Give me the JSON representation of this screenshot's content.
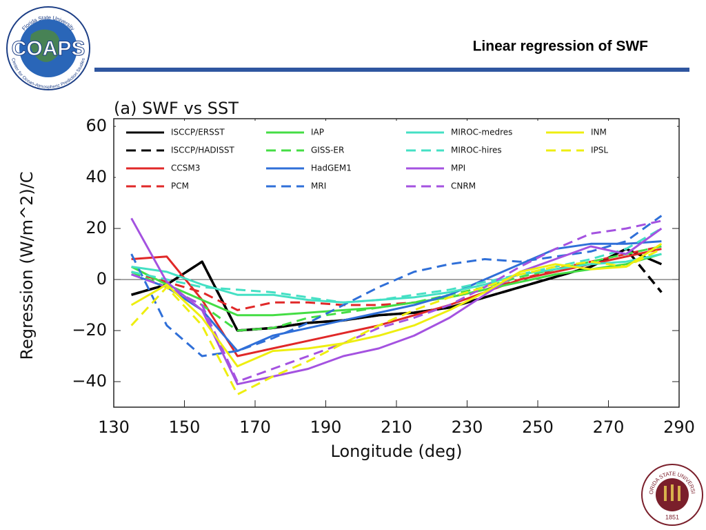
{
  "header": {
    "title": "Linear regression of SWF"
  },
  "logo": {
    "name": "COAPS",
    "top": "Florida State University",
    "bottom": "Center for Ocean-Atmospheric Prediction Studies"
  },
  "seal": {
    "name": "FLORIDA STATE UNIVERSITY",
    "year": "1851"
  },
  "chart_data": {
    "type": "line",
    "title": "(a) SWF vs SST",
    "x_label": "Longitude (deg)",
    "y_label": "Regression (W/m^2)/C",
    "x": [
      135,
      145,
      155,
      165,
      175,
      185,
      195,
      205,
      215,
      225,
      235,
      245,
      255,
      265,
      275,
      285
    ],
    "xlim": [
      130,
      290
    ],
    "xticks": [
      130,
      150,
      170,
      190,
      210,
      230,
      250,
      270,
      290
    ],
    "ylim": [
      -50,
      63
    ],
    "yticks": [
      {
        "value": -40,
        "label": "−40"
      },
      {
        "value": -20,
        "label": "−20"
      },
      0,
      20,
      40,
      60
    ],
    "zero_line": true,
    "legend": "top",
    "series": [
      {
        "name": "ISCCP/ERSST",
        "color": "#000000",
        "dashed": false,
        "values": [
          -6,
          -2,
          7,
          -20,
          -19,
          -17,
          -16,
          -14,
          -13,
          -11,
          -7,
          -3,
          1,
          5,
          12,
          6
        ]
      },
      {
        "name": "ISCCP/HADISST",
        "color": "#000000",
        "dashed": true,
        "values": [
          -6,
          -2,
          7,
          -20,
          -19,
          -17,
          -16,
          -14,
          -13,
          -11,
          -7,
          -3,
          1,
          5,
          12,
          -5
        ]
      },
      {
        "name": "CCSM3",
        "color": "#e02828",
        "dashed": false,
        "values": [
          8,
          9,
          -8,
          -30,
          -27,
          -24,
          -21,
          -18,
          -14,
          -10,
          -5,
          0,
          3,
          6,
          9,
          12
        ]
      },
      {
        "name": "PCM",
        "color": "#e02828",
        "dashed": true,
        "values": [
          3,
          -1,
          -5,
          -12,
          -9,
          -9,
          -10,
          -10,
          -9,
          -7,
          -4,
          0,
          4,
          7,
          10,
          13
        ]
      },
      {
        "name": "IAP",
        "color": "#44dd44",
        "dashed": false,
        "values": [
          5,
          -2,
          -8,
          -14,
          -14,
          -13,
          -12,
          -11,
          -9,
          -7,
          -4,
          -1,
          2,
          4,
          6,
          10
        ]
      },
      {
        "name": "GISS-ER",
        "color": "#44dd44",
        "dashed": true,
        "values": [
          3,
          -3,
          -10,
          -20,
          -19,
          -15,
          -13,
          -11,
          -9,
          -6,
          -3,
          1,
          4,
          7,
          10,
          13
        ]
      },
      {
        "name": "HadGEM1",
        "color": "#2f6fd8",
        "dashed": false,
        "values": [
          2,
          -3,
          -12,
          -28,
          -22,
          -19,
          -16,
          -13,
          -10,
          -6,
          0,
          6,
          12,
          14,
          14,
          15
        ]
      },
      {
        "name": "MRI",
        "color": "#2f6fd8",
        "dashed": true,
        "values": [
          10,
          -18,
          -30,
          -28,
          -23,
          -17,
          -10,
          -3,
          3,
          6,
          8,
          7,
          9,
          11,
          15,
          25
        ]
      },
      {
        "name": "MIROC-medres",
        "color": "#44e0c4",
        "dashed": false,
        "values": [
          5,
          3,
          -2,
          -6,
          -6,
          -8,
          -9,
          -8,
          -7,
          -5,
          -2,
          2,
          4,
          6,
          7,
          10
        ]
      },
      {
        "name": "MIROC-hires",
        "color": "#44e0c4",
        "dashed": true,
        "values": [
          3,
          0,
          -3,
          -4,
          -5,
          -7,
          -9,
          -8,
          -6,
          -4,
          -1,
          2,
          5,
          8,
          12,
          20
        ]
      },
      {
        "name": "MPI",
        "color": "#a452e0",
        "dashed": false,
        "values": [
          24,
          -1,
          -12,
          -41,
          -38,
          -35,
          -30,
          -27,
          -22,
          -15,
          -6,
          3,
          8,
          13,
          10,
          20
        ]
      },
      {
        "name": "CNRM",
        "color": "#a452e0",
        "dashed": true,
        "values": [
          2,
          -3,
          -10,
          -40,
          -35,
          -30,
          -25,
          -19,
          -15,
          -10,
          -3,
          5,
          12,
          18,
          20,
          23
        ]
      },
      {
        "name": "INM",
        "color": "#eeee10",
        "dashed": false,
        "values": [
          -10,
          -2,
          -15,
          -34,
          -28,
          -27,
          -25,
          -22,
          -18,
          -12,
          -5,
          3,
          6,
          4,
          5,
          14
        ]
      },
      {
        "name": "IPSL",
        "color": "#eeee10",
        "dashed": true,
        "values": [
          -18,
          -3,
          -18,
          -45,
          -38,
          -32,
          -25,
          -18,
          -12,
          -7,
          -3,
          2,
          5,
          7,
          5,
          12
        ]
      }
    ]
  }
}
